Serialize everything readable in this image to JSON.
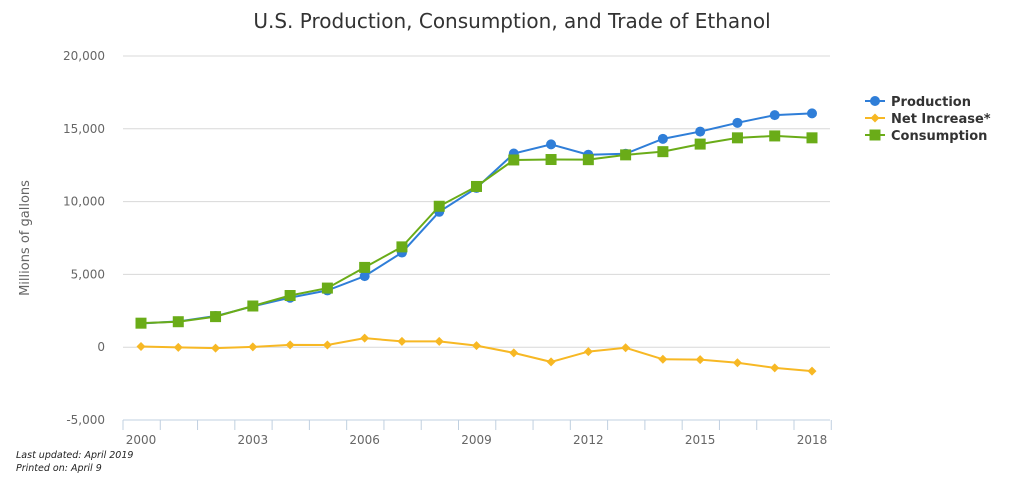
{
  "chart_data": {
    "type": "line",
    "title": "U.S. Production, Consumption, and Trade of Ethanol",
    "xlabel": "",
    "ylabel": "Millions of gallons",
    "ylim": [
      -5000,
      20000
    ],
    "yticks": [
      -5000,
      0,
      5000,
      10000,
      15000,
      20000
    ],
    "ytick_labels": [
      "-5,000",
      "0",
      "5,000",
      "10,000",
      "15,000",
      "20,000"
    ],
    "x": [
      2000,
      2001,
      2002,
      2003,
      2004,
      2005,
      2006,
      2007,
      2008,
      2009,
      2010,
      2011,
      2012,
      2013,
      2014,
      2015,
      2016,
      2017,
      2018
    ],
    "xlim": [
      2000,
      2018
    ],
    "xtick_labels": [
      "2000",
      "2003",
      "2006",
      "2009",
      "2012",
      "2015",
      "2018"
    ],
    "xtick_label_years": [
      2000,
      2003,
      2006,
      2009,
      2012,
      2015,
      2018
    ],
    "grid": true,
    "legend_position": "right",
    "series": [
      {
        "name": "Production",
        "color": "#2f7ed8",
        "marker": "circle",
        "values": [
          1630,
          1770,
          2140,
          2800,
          3400,
          3900,
          4880,
          6500,
          9300,
          10940,
          13300,
          13930,
          13220,
          13290,
          14310,
          14810,
          15410,
          15940,
          16060
        ]
      },
      {
        "name": "Net Increase*",
        "color": "#f7b824",
        "marker": "diamond",
        "values": [
          50,
          -10,
          -60,
          20,
          160,
          150,
          620,
          400,
          400,
          110,
          -390,
          -1010,
          -300,
          -40,
          -830,
          -850,
          -1070,
          -1420,
          -1640
        ]
      },
      {
        "name": "Consumption",
        "color": "#6aac18",
        "marker": "square",
        "values": [
          1650,
          1750,
          2100,
          2830,
          3550,
          4060,
          5480,
          6890,
          9680,
          11040,
          12860,
          12890,
          12880,
          13210,
          13430,
          13950,
          14380,
          14510,
          14380
        ]
      }
    ]
  },
  "footer": {
    "last_updated": "Last updated: April 2019",
    "printed_on": "Printed on: April 9"
  }
}
